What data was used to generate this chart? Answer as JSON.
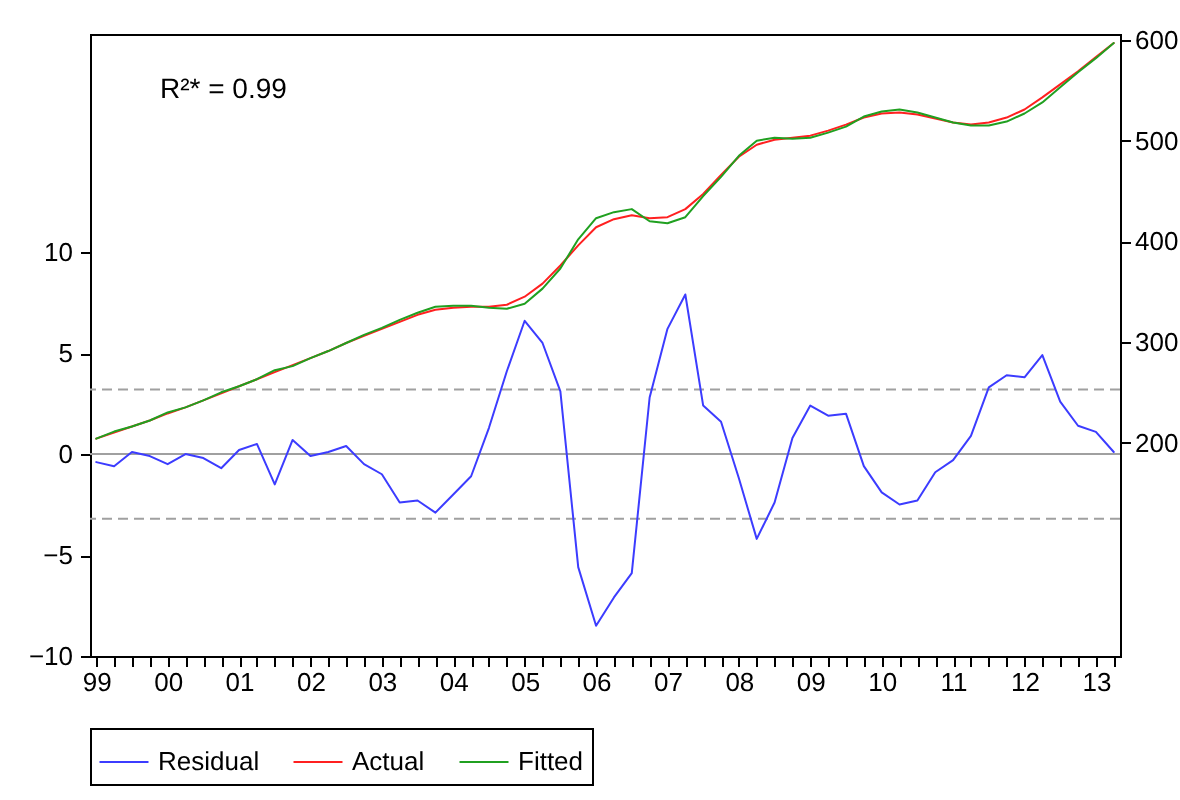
{
  "chart_data": {
    "type": "line",
    "annotations": [
      "R²* = 0.99"
    ],
    "categories": [
      "99",
      null,
      null,
      null,
      "00",
      null,
      null,
      null,
      "01",
      null,
      null,
      null,
      "02",
      null,
      null,
      null,
      "03",
      null,
      null,
      null,
      "04",
      null,
      null,
      null,
      "05",
      null,
      null,
      null,
      "06",
      null,
      null,
      null,
      "07",
      null,
      null,
      null,
      "08",
      null,
      null,
      null,
      "09",
      null,
      null,
      null,
      "10",
      null,
      null,
      null,
      "11",
      null,
      null,
      null,
      "12",
      null,
      null,
      null,
      "13",
      null
    ],
    "series": [
      {
        "name": "Residual",
        "color": "#3c3cff",
        "axis": "y",
        "values": [
          -0.4,
          -0.6,
          0.1,
          -0.1,
          -0.5,
          0,
          -0.2,
          -0.7,
          0.2,
          0.5,
          -1.5,
          0.7,
          -0.1,
          0.1,
          0.4,
          -0.5,
          -1.0,
          -2.4,
          -2.3,
          -2.9,
          -2.0,
          -1.1,
          1.3,
          4.1,
          6.6,
          5.5,
          3.1,
          -5.6,
          -8.5,
          -7.1,
          -5.9,
          2.8,
          6.2,
          7.9,
          2.4,
          1.6,
          -1.2,
          -4.2,
          -2.4,
          0.8,
          2.4,
          1.9,
          2.0,
          -0.6,
          -1.9,
          -2.5,
          -2.3,
          -0.9,
          -0.3,
          0.9,
          3.3,
          3.9,
          3.8,
          4.9,
          2.6,
          1.4,
          1.1,
          0.1
        ]
      },
      {
        "name": "Actual",
        "color": "#ff2020",
        "axis": "y2",
        "values": [
          204,
          210,
          216,
          222,
          229,
          235,
          242,
          249,
          256,
          263,
          270,
          277,
          284,
          291,
          299,
          306,
          313,
          320,
          327,
          332,
          334,
          335,
          335,
          337,
          345,
          358,
          376,
          396,
          414,
          422,
          426,
          423,
          424,
          432,
          447,
          466,
          484,
          496,
          501,
          503,
          505,
          510,
          516,
          523,
          527,
          528,
          526,
          522,
          518,
          516,
          518,
          523,
          531,
          543,
          556,
          569,
          583,
          597
        ]
      },
      {
        "name": "Fitted",
        "color": "#20a020",
        "axis": "y2",
        "values": [
          204,
          211,
          216,
          222,
          230,
          235,
          242,
          250,
          256,
          263,
          272,
          276,
          284,
          291,
          299,
          307,
          314,
          322,
          329,
          335,
          336,
          336,
          334,
          333,
          338,
          353,
          373,
          402,
          423,
          429,
          432,
          420,
          418,
          424,
          445,
          464,
          485,
          500,
          503,
          502,
          503,
          508,
          514,
          524,
          529,
          531,
          528,
          523,
          518,
          515,
          515,
          519,
          527,
          538,
          553,
          568,
          582,
          597
        ]
      }
    ],
    "ylim": [
      -10,
      20.8
    ],
    "yticks": [
      -10,
      -5,
      0,
      5,
      10
    ],
    "y2lim": [
      -12,
      606
    ],
    "y2ticks": [
      200,
      300,
      400,
      500,
      600
    ],
    "ref_lines": [
      {
        "axis": "y",
        "value": 0,
        "color": "#a0a0a0",
        "line_style": "solid"
      },
      {
        "axis": "y",
        "value": 3.2,
        "color": "#a0a0a0",
        "line_style": "dashed"
      },
      {
        "axis": "y",
        "value": -3.2,
        "color": "#a0a0a0",
        "line_style": "dashed"
      }
    ],
    "grid": false,
    "legend": "bottom"
  }
}
